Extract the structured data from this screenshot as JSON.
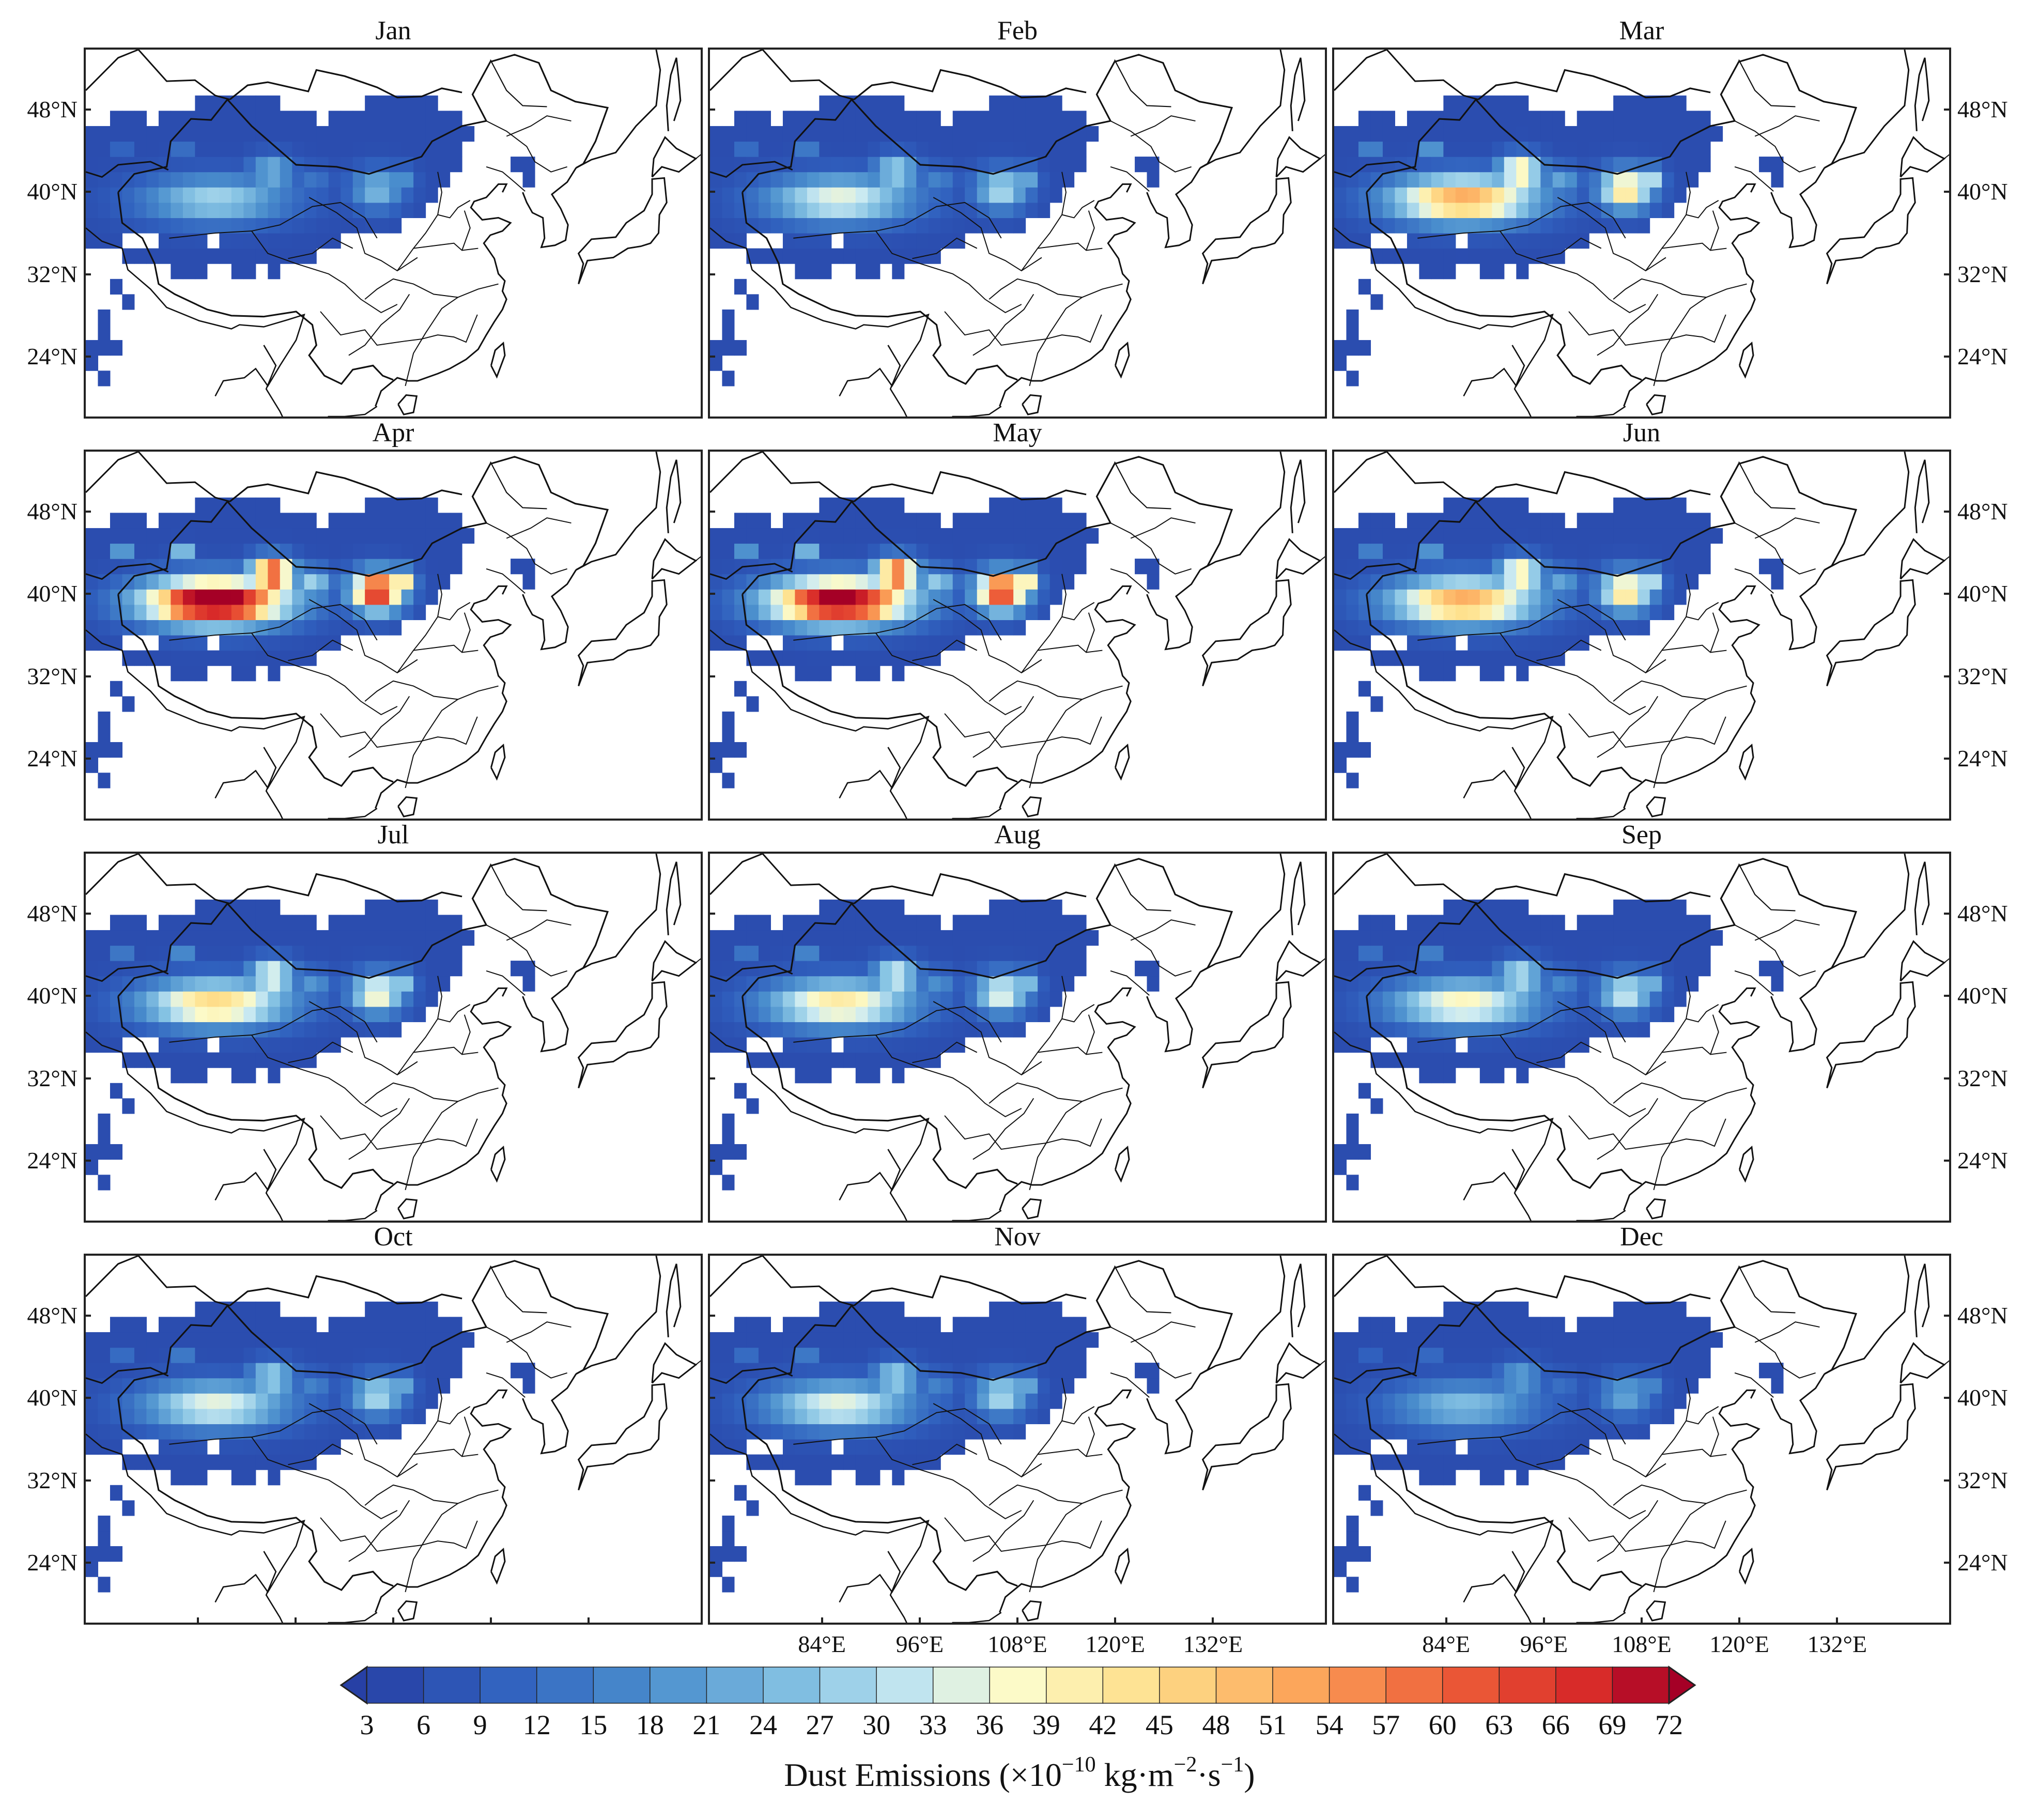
{
  "figure": {
    "months": [
      "Jan",
      "Feb",
      "Mar",
      "Apr",
      "May",
      "Jun",
      "Jul",
      "Aug",
      "Sep",
      "Oct",
      "Nov",
      "Dec"
    ],
    "intensity": [
      0.35,
      0.45,
      0.7,
      1.0,
      0.95,
      0.7,
      0.6,
      0.55,
      0.5,
      0.45,
      0.45,
      0.3
    ],
    "lat_labels": [
      "48°N",
      "40°N",
      "32°N",
      "24°N"
    ],
    "lon_labels": [
      "84°E",
      "96°E",
      "108°E",
      "120°E",
      "132°E"
    ]
  },
  "colorbar": {
    "ticks": [
      "3",
      "6",
      "9",
      "12",
      "15",
      "18",
      "21",
      "24",
      "27",
      "30",
      "33",
      "36",
      "39",
      "42",
      "45",
      "48",
      "51",
      "54",
      "57",
      "60",
      "63",
      "66",
      "69",
      "72"
    ],
    "label_prefix": "Dust Emissions (×10",
    "label_exp1": "−10",
    "label_mid": " kg·m",
    "label_exp2": "−2",
    "label_mid2": "·s",
    "label_exp3": "−1",
    "label_suffix": ")"
  },
  "chart_data": {
    "type": "heatmap",
    "title": "",
    "panels": [
      "Jan",
      "Feb",
      "Mar",
      "Apr",
      "May",
      "Jun",
      "Jul",
      "Aug",
      "Sep",
      "Oct",
      "Nov",
      "Dec"
    ],
    "xlabel": "",
    "ylabel": "",
    "x_ticks": [
      "84°E",
      "96°E",
      "108°E",
      "120°E",
      "132°E"
    ],
    "y_ticks": [
      "48°N",
      "40°N",
      "32°N",
      "24°N"
    ],
    "colorbar_range": [
      3,
      72
    ],
    "colorbar_step": 3,
    "colormap": "blue-white-yellow-red",
    "relative_peak_intensity": {
      "Jan": 0.35,
      "Feb": 0.45,
      "Mar": 0.7,
      "Apr": 1.0,
      "May": 0.95,
      "Jun": 0.7,
      "Jul": 0.6,
      "Aug": 0.55,
      "Sep": 0.5,
      "Oct": 0.45,
      "Nov": 0.45,
      "Dec": 0.3
    }
  }
}
